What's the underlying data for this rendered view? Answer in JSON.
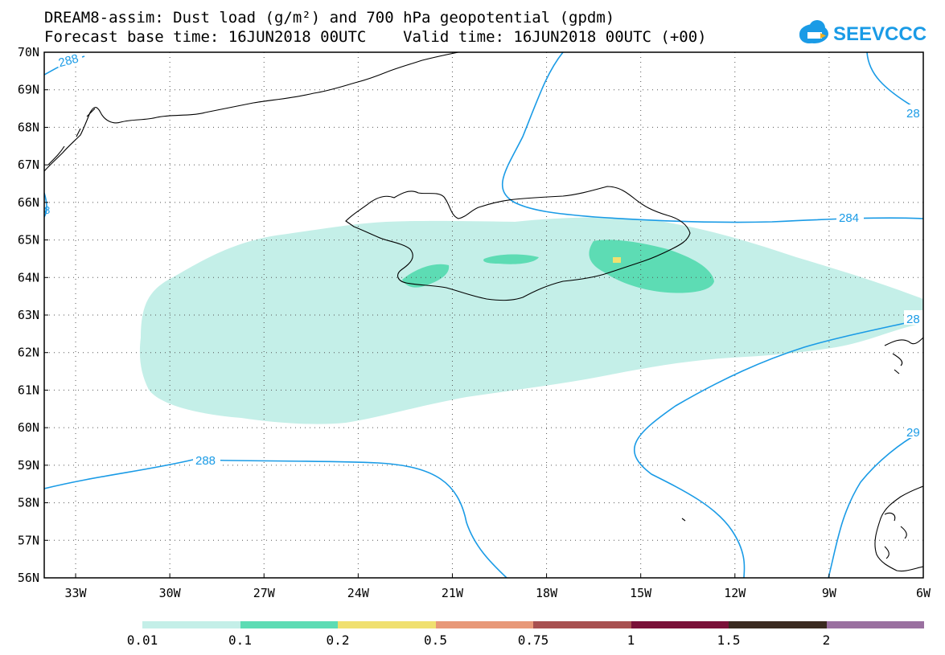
{
  "header": {
    "title_line1": "DREAM8-assim: Dust load (g/m²) and 700 hPa geopotential (gpdm)",
    "title_line2": "Forecast base time: 16JUN2018 00UTC    Valid time: 16JUN2018 00UTC (+00)",
    "logo_text": "SEEVCCC"
  },
  "map": {
    "lat_ticks": [
      "70N",
      "69N",
      "68N",
      "67N",
      "66N",
      "65N",
      "64N",
      "63N",
      "62N",
      "61N",
      "60N",
      "59N",
      "58N",
      "57N",
      "56N"
    ],
    "lon_ticks": [
      "33W",
      "30W",
      "27W",
      "24W",
      "21W",
      "18W",
      "15W",
      "12W",
      "9W",
      "6W"
    ],
    "contour_labels": [
      "288",
      "284",
      "288",
      "28",
      "28",
      "29",
      "8",
      "28"
    ],
    "contour_color": "#1a9be6",
    "dust_levels_colors": [
      "#c4efe8",
      "#5ddcb4",
      "#f0e070",
      "#e89878",
      "#a85050",
      "#7a1038",
      "#3a2a20",
      "#9a70a0"
    ]
  },
  "colorbar": {
    "labels": [
      "0.01",
      "0.1",
      "0.2",
      "0.5",
      "0.75",
      "1",
      "1.5",
      "2"
    ],
    "colors": [
      "#c4efe8",
      "#5ddcb4",
      "#f0e070",
      "#e89878",
      "#a85050",
      "#7a1038",
      "#3a2a20",
      "#9a70a0"
    ]
  }
}
